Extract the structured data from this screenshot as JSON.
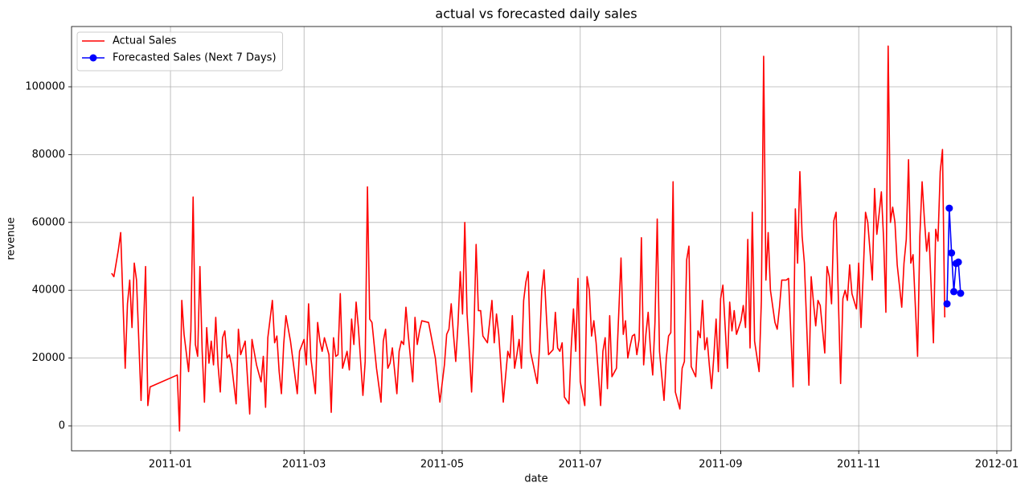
{
  "chart_data": {
    "type": "line",
    "title": "actual vs forecasted daily sales",
    "x_label": "date",
    "y_label": "revenue",
    "xlim": [
      14931.3,
      15346.4
    ],
    "ylim": [
      -7346,
      117773
    ],
    "xticks": [
      {
        "value": 14975,
        "label": "2011-01"
      },
      {
        "value": 15034,
        "label": "2011-03"
      },
      {
        "value": 15095,
        "label": "2011-05"
      },
      {
        "value": 15156,
        "label": "2011-07"
      },
      {
        "value": 15218,
        "label": "2011-09"
      },
      {
        "value": 15279,
        "label": "2011-11"
      },
      {
        "value": 15340,
        "label": "2012-01"
      }
    ],
    "yticks": [
      0,
      20000,
      40000,
      60000,
      80000,
      100000
    ],
    "grid": true,
    "legend": "upper-left",
    "series": [
      {
        "name": "Actual Sales",
        "color": "#ff0000",
        "marker": false,
        "x": [
          14949,
          14950,
          14952,
          14953,
          14955,
          14956,
          14957,
          14958,
          14959,
          14960,
          14962,
          14964,
          14965,
          14966,
          14978,
          14979,
          14980,
          14981,
          14983,
          14984,
          14985,
          14986,
          14987,
          14988,
          14989,
          14990,
          14991,
          14992,
          14993,
          14994,
          14995,
          14996,
          14997,
          14998,
          14999,
          15000,
          15001,
          15002,
          15004,
          15005,
          15006,
          15008,
          15010,
          15011,
          15013,
          15015,
          15016,
          15017,
          15018,
          15020,
          15021,
          15022,
          15023,
          15024,
          15025,
          15026,
          15028,
          15031,
          15032,
          15034,
          15035,
          15036,
          15037,
          15039,
          15040,
          15041,
          15042,
          15043,
          15045,
          15046,
          15047,
          15048,
          15049,
          15050,
          15051,
          15053,
          15054,
          15055,
          15056,
          15057,
          15058,
          15060,
          15061,
          15062,
          15063,
          15064,
          15066,
          15068,
          15069,
          15070,
          15071,
          15072,
          15073,
          15075,
          15076,
          15077,
          15078,
          15079,
          15080,
          15082,
          15083,
          15084,
          15085,
          15086,
          15089,
          15092,
          15094,
          15096,
          15097,
          15098,
          15099,
          15100,
          15101,
          15102,
          15103,
          15104,
          15105,
          15106,
          15107,
          15108,
          15109,
          15110,
          15111,
          15112,
          15113,
          15115,
          15117,
          15118,
          15119,
          15120,
          15122,
          15124,
          15125,
          15126,
          15127,
          15128,
          15129,
          15130,
          15131,
          15132,
          15133,
          15134,
          15137,
          15138,
          15139,
          15140,
          15141,
          15142,
          15144,
          15145,
          15146,
          15147,
          15148,
          15149,
          15151,
          15152,
          15153,
          15154,
          15155,
          15156,
          15158,
          15159,
          15160,
          15161,
          15162,
          15163,
          15165,
          15166,
          15167,
          15168,
          15169,
          15170,
          15172,
          15174,
          15175,
          15176,
          15177,
          15178,
          15179,
          15180,
          15181,
          15182,
          15183,
          15184,
          15185,
          15186,
          15187,
          15188,
          15189,
          15190,
          15191,
          15193,
          15194,
          15195,
          15196,
          15197,
          15198,
          15200,
          15201,
          15202,
          15203,
          15204,
          15205,
          15207,
          15208,
          15209,
          15210,
          15211,
          15212,
          15213,
          15214,
          15215,
          15216,
          15217,
          15218,
          15219,
          15221,
          15222,
          15223,
          15224,
          15225,
          15227,
          15228,
          15229,
          15230,
          15231,
          15232,
          15233,
          15235,
          15236,
          15237,
          15238,
          15239,
          15240,
          15242,
          15243,
          15244,
          15245,
          15247,
          15248,
          15250,
          15251,
          15252,
          15253,
          15254,
          15255,
          15257,
          15258,
          15259,
          15260,
          15261,
          15262,
          15264,
          15265,
          15266,
          15267,
          15268,
          15269,
          15271,
          15272,
          15273,
          15274,
          15275,
          15276,
          15278,
          15279,
          15280,
          15281,
          15282,
          15283,
          15285,
          15286,
          15287,
          15288,
          15289,
          15290,
          15291,
          15292,
          15293,
          15294,
          15295,
          15296,
          15298,
          15299,
          15300,
          15301,
          15302,
          15303,
          15305,
          15306,
          15307,
          15308,
          15309,
          15310,
          15312,
          15313,
          15314,
          15315,
          15316,
          15317
        ],
        "values": [
          45000,
          44000,
          52000,
          57000,
          17000,
          36000,
          43000,
          29000,
          48000,
          43000,
          7500,
          47000,
          6000,
          11500,
          15000,
          -1500,
          37000,
          27000,
          16000,
          28000,
          67500,
          24000,
          20500,
          47000,
          22000,
          7000,
          29000,
          18500,
          25000,
          18000,
          32000,
          18000,
          10000,
          26000,
          28000,
          20000,
          21000,
          18000,
          6500,
          28500,
          21000,
          25000,
          3500,
          25500,
          18000,
          13000,
          20500,
          5500,
          26000,
          37000,
          24500,
          26500,
          16000,
          9500,
          24000,
          32500,
          25000,
          9500,
          22000,
          25500,
          18000,
          36000,
          20000,
          9500,
          30500,
          25000,
          22000,
          26000,
          21000,
          4000,
          26000,
          20500,
          21000,
          39000,
          17000,
          22000,
          16500,
          31500,
          24000,
          36500,
          29000,
          9000,
          19000,
          70500,
          31500,
          30500,
          17000,
          7000,
          25000,
          28500,
          17000,
          18500,
          23000,
          9500,
          22000,
          25000,
          24000,
          35000,
          27000,
          13000,
          32000,
          24000,
          28000,
          31000,
          30500,
          20000,
          7000,
          18000,
          27000,
          28500,
          36000,
          27000,
          19000,
          30000,
          45500,
          33000,
          60000,
          33000,
          22000,
          10000,
          27000,
          53500,
          34000,
          34000,
          26500,
          24500,
          37000,
          24500,
          33000,
          27000,
          7000,
          22000,
          20000,
          32500,
          17000,
          21000,
          25500,
          17000,
          37000,
          42500,
          45500,
          22000,
          12500,
          23000,
          40000,
          46000,
          33000,
          21000,
          22500,
          33500,
          23000,
          22000,
          24500,
          8500,
          6500,
          23000,
          34500,
          22000,
          43500,
          13000,
          6000,
          44000,
          40000,
          26500,
          31000,
          24500,
          6000,
          22000,
          26000,
          11000,
          32500,
          14500,
          17000,
          49500,
          27000,
          31000,
          20000,
          23500,
          26500,
          27000,
          21000,
          25500,
          55500,
          18000,
          27000,
          33500,
          22500,
          15000,
          30500,
          61000,
          22000,
          7500,
          20000,
          26500,
          27500,
          72000,
          10000,
          5000,
          17000,
          19000,
          49000,
          53000,
          17500,
          14500,
          28000,
          26000,
          37000,
          22500,
          26000,
          18000,
          11000,
          20500,
          31500,
          16000,
          37500,
          41500,
          17000,
          36500,
          28000,
          34000,
          27000,
          31000,
          35500,
          29000,
          55000,
          23000,
          63000,
          25000,
          16000,
          37000,
          109000,
          43000,
          57000,
          40000,
          30500,
          28500,
          35000,
          43000,
          43000,
          43500,
          11500,
          64000,
          48000,
          75000,
          56000,
          48000,
          12000,
          44000,
          36500,
          29500,
          37000,
          35500,
          21500,
          47000,
          44000,
          36000,
          60500,
          63000,
          12500,
          37500,
          40000,
          37000,
          47500,
          39000,
          34500,
          48000,
          29000,
          45000,
          63000,
          60000,
          43000,
          70000,
          56500,
          62500,
          69000,
          55000,
          33500,
          112000,
          60000,
          64500,
          60000,
          47500,
          35000,
          48000,
          55000,
          78500,
          48000,
          50500,
          20500,
          56000,
          72000,
          61000,
          51500,
          57000,
          24500,
          58000,
          54500,
          75000,
          81500,
          32000
        ]
      },
      {
        "name": "Forecasted Sales (Next 7 Days)",
        "color": "#0000ff",
        "marker": true,
        "x": [
          15318,
          15319,
          15320,
          15321,
          15322,
          15323,
          15324
        ],
        "values": [
          36000,
          64200,
          51000,
          39600,
          47900,
          48300,
          39100
        ]
      }
    ]
  }
}
